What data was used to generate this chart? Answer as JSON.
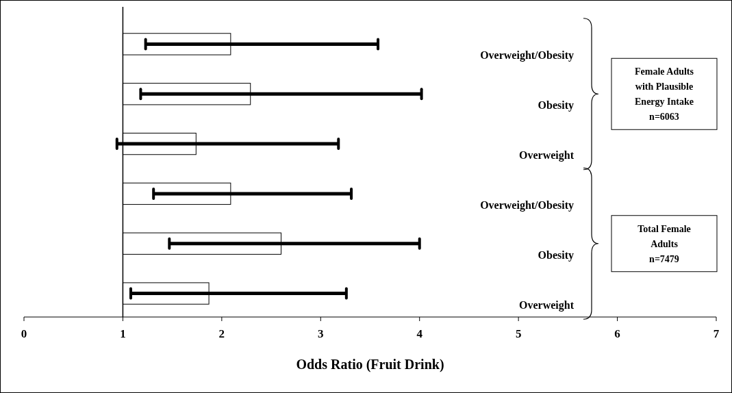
{
  "chart_data": {
    "type": "bar",
    "orientation": "horizontal",
    "xlabel": "Odds Ratio (Fruit Drink)",
    "categories": [
      "Overweight/Obesity",
      "Obesity",
      "Overweight",
      "Overweight/Obesity",
      "Obesity",
      "Overweight"
    ],
    "base": [
      1,
      1,
      1,
      1,
      1,
      1
    ],
    "values": [
      1.09,
      1.29,
      0.74,
      1.09,
      1.6,
      0.87
    ],
    "errors": [
      [
        1.23,
        3.58
      ],
      [
        1.18,
        4.02
      ],
      [
        0.94,
        3.18
      ],
      [
        1.31,
        3.31
      ],
      [
        1.47,
        4.0
      ],
      [
        1.08,
        3.26
      ]
    ],
    "color": "#ffffff",
    "xlim": [
      0,
      7
    ],
    "xticks": [
      0,
      1,
      2,
      3,
      4,
      5,
      6,
      7
    ],
    "ref_lines": [
      {
        "axis": "x",
        "value": 1,
        "color": "#000000"
      }
    ],
    "grid": false,
    "annotations": [
      "Female Adults\nwith Plausible\nEnergy Intake\nn=6063",
      "Total Female\nAdults\nn=7479"
    ]
  }
}
